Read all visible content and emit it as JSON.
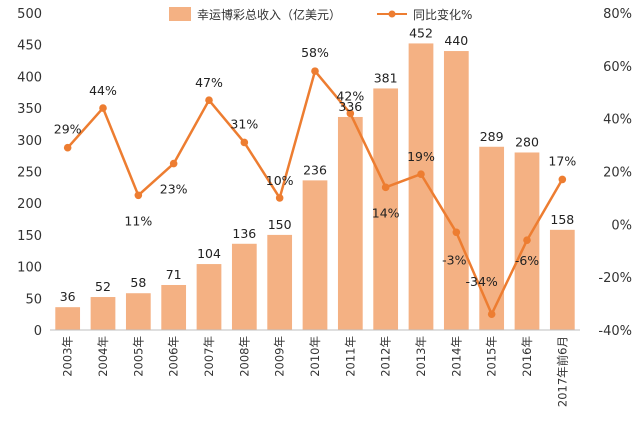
{
  "chart_data": {
    "type": "bar+line",
    "categories": [
      "2003年",
      "2004年",
      "2005年",
      "2006年",
      "2007年",
      "2008年",
      "2009年",
      "2010年",
      "2011年",
      "2012年",
      "2013年",
      "2014年",
      "2015年",
      "2016年",
      "2017年前6月"
    ],
    "series": [
      {
        "name": "幸运博彩总收入（亿美元）",
        "type": "bar",
        "axis": "left",
        "values": [
          36,
          52,
          58,
          71,
          104,
          136,
          150,
          236,
          336,
          381,
          452,
          440,
          289,
          280,
          158
        ],
        "labels": [
          "36",
          "52",
          "58",
          "71",
          "104",
          "136",
          "150",
          "236",
          "336",
          "381",
          "452",
          "440",
          "289",
          "280",
          "158"
        ]
      },
      {
        "name": "同比变化%",
        "type": "line",
        "axis": "right",
        "values": [
          29,
          44,
          11,
          23,
          47,
          31,
          10,
          58,
          42,
          14,
          19,
          -3,
          -34,
          -6,
          17
        ],
        "labels": [
          "29%",
          "44%",
          "11%",
          "23%",
          "47%",
          "31%",
          "10%",
          "58%",
          "42%",
          "14%",
          "19%",
          "-3%",
          "-34%",
          "-6%",
          "17%"
        ]
      }
    ],
    "y_left": {
      "min": 0,
      "max": 500,
      "step": 50,
      "ticks": [
        "0",
        "50",
        "100",
        "150",
        "200",
        "250",
        "300",
        "350",
        "400",
        "450",
        "500"
      ]
    },
    "y_right": {
      "min": -40,
      "max": 80,
      "step": 20,
      "ticks": [
        "-40%",
        "-20%",
        "0%",
        "20%",
        "40%",
        "60%",
        "80%"
      ]
    },
    "grid": false,
    "legend": "top-center",
    "colors": {
      "bar": "#F4B183",
      "line": "#ED7D31",
      "axis": "#bfbfbf"
    }
  }
}
